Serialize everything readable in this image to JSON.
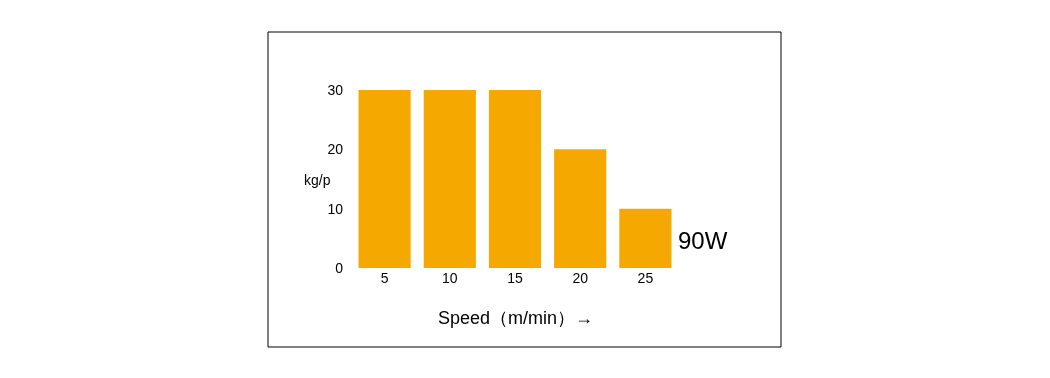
{
  "chart_data": {
    "type": "bar",
    "categories": [
      "5",
      "10",
      "15",
      "20",
      "25"
    ],
    "values": [
      30,
      30,
      30,
      20,
      10
    ],
    "color": "#f5a800",
    "ylim": [
      0,
      30
    ],
    "yticks": [
      0,
      10,
      20,
      30
    ],
    "ylabel": "kg/p",
    "xlabel": "Speed（m/min）→",
    "annotations": [
      "90W"
    ]
  }
}
